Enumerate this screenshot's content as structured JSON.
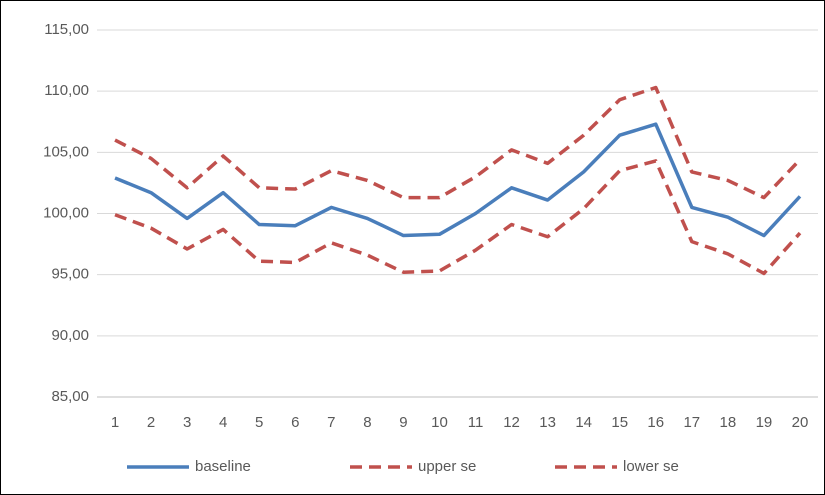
{
  "chart_data": {
    "type": "line",
    "categories": [
      "1",
      "2",
      "3",
      "4",
      "5",
      "6",
      "7",
      "8",
      "9",
      "10",
      "11",
      "12",
      "13",
      "14",
      "15",
      "16",
      "17",
      "18",
      "19",
      "20"
    ],
    "series": [
      {
        "name": "baseline",
        "color": "#4a7ebb",
        "dashed": false,
        "values": [
          102.9,
          101.7,
          99.6,
          101.7,
          99.1,
          99.0,
          100.5,
          99.6,
          98.2,
          98.3,
          100.0,
          102.1,
          101.1,
          103.4,
          106.4,
          107.3,
          100.5,
          99.7,
          98.2,
          101.4
        ]
      },
      {
        "name": "upper se",
        "color": "#c0504d",
        "dashed": true,
        "values": [
          106.0,
          104.5,
          102.1,
          104.7,
          102.1,
          102.0,
          103.5,
          102.7,
          101.3,
          101.3,
          103.0,
          105.2,
          104.1,
          106.4,
          109.3,
          110.3,
          103.4,
          102.7,
          101.3,
          104.4
        ]
      },
      {
        "name": "lower se",
        "color": "#c0504d",
        "dashed": true,
        "values": [
          99.9,
          98.8,
          97.1,
          98.7,
          96.1,
          96.0,
          97.6,
          96.6,
          95.2,
          95.3,
          97.0,
          99.1,
          98.1,
          100.4,
          103.5,
          104.3,
          97.7,
          96.7,
          95.1,
          98.4
        ]
      }
    ],
    "ylim": [
      85,
      115
    ],
    "yticks": [
      {
        "value": 85,
        "label": "85,00"
      },
      {
        "value": 90,
        "label": "90,00"
      },
      {
        "value": 95,
        "label": "95,00"
      },
      {
        "value": 100,
        "label": "100,00"
      },
      {
        "value": 105,
        "label": "105,00"
      },
      {
        "value": 110,
        "label": "110,00"
      },
      {
        "value": 115,
        "label": "115,00"
      }
    ],
    "grid": true,
    "legend": "bottom"
  }
}
